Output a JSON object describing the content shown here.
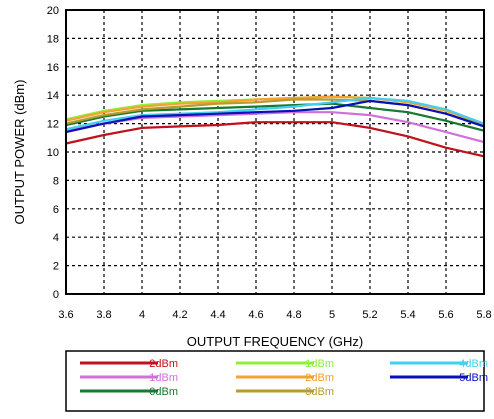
{
  "chart_data": {
    "type": "line",
    "title": "",
    "xlabel": "OUTPUT FREQUENCY (GHz)",
    "ylabel": "OUTPUT POWER (dBm)",
    "xlim": [
      3.6,
      5.8
    ],
    "ylim": [
      0,
      20
    ],
    "x_ticks": [
      "3.6",
      "3.8",
      "4",
      "4.2",
      "4.4",
      "4.6",
      "4.8",
      "5",
      "5.2",
      "5.4",
      "5.6",
      "5.8"
    ],
    "y_ticks": [
      "0",
      "2",
      "4",
      "6",
      "8",
      "10",
      "12",
      "14",
      "16",
      "18",
      "20"
    ],
    "grid": true,
    "grid_style": "dashed",
    "legend_position": "bottom",
    "x": [
      3.6,
      3.8,
      4.0,
      4.2,
      4.4,
      4.6,
      4.8,
      5.0,
      5.2,
      5.4,
      5.6,
      5.8
    ],
    "series": [
      {
        "name": "-2dBm",
        "color": "#c0121b",
        "values": [
          10.6,
          11.2,
          11.7,
          11.8,
          11.9,
          12.1,
          12.1,
          12.1,
          11.7,
          11.1,
          10.3,
          9.7
        ]
      },
      {
        "name": "-1dBm",
        "color": "#d070d8",
        "values": [
          11.5,
          12.0,
          12.4,
          12.5,
          12.6,
          12.7,
          12.8,
          12.8,
          12.6,
          12.1,
          11.4,
          10.7
        ]
      },
      {
        "name": "0dBm",
        "color": "#157a2f",
        "values": [
          11.9,
          12.5,
          12.9,
          13.0,
          13.1,
          13.2,
          13.3,
          13.4,
          13.1,
          12.8,
          12.2,
          11.5
        ]
      },
      {
        "name": "1dBm",
        "color": "#8cf03a",
        "values": [
          12.3,
          12.9,
          13.3,
          13.5,
          13.6,
          13.7,
          13.8,
          13.9,
          13.8,
          13.5,
          12.9,
          12.0
        ]
      },
      {
        "name": "2dBm",
        "color": "#f5a030",
        "values": [
          12.2,
          12.8,
          13.2,
          13.4,
          13.5,
          13.7,
          13.8,
          13.9,
          13.8,
          13.5,
          12.9,
          12.0
        ]
      },
      {
        "name": "3dBm",
        "color": "#b89a2e",
        "values": [
          12.0,
          12.6,
          13.0,
          13.2,
          13.4,
          13.5,
          13.7,
          13.7,
          13.6,
          13.3,
          12.7,
          11.9
        ]
      },
      {
        "name": "4dBm",
        "color": "#40d0f0",
        "values": [
          11.6,
          12.2,
          12.6,
          12.7,
          12.8,
          13.0,
          13.2,
          13.5,
          13.8,
          13.6,
          13.0,
          12.0
        ]
      },
      {
        "name": "5dBm",
        "color": "#0a10b8",
        "values": [
          11.4,
          12.0,
          12.5,
          12.6,
          12.7,
          12.8,
          12.9,
          13.1,
          13.6,
          13.3,
          12.7,
          11.8
        ]
      }
    ]
  }
}
